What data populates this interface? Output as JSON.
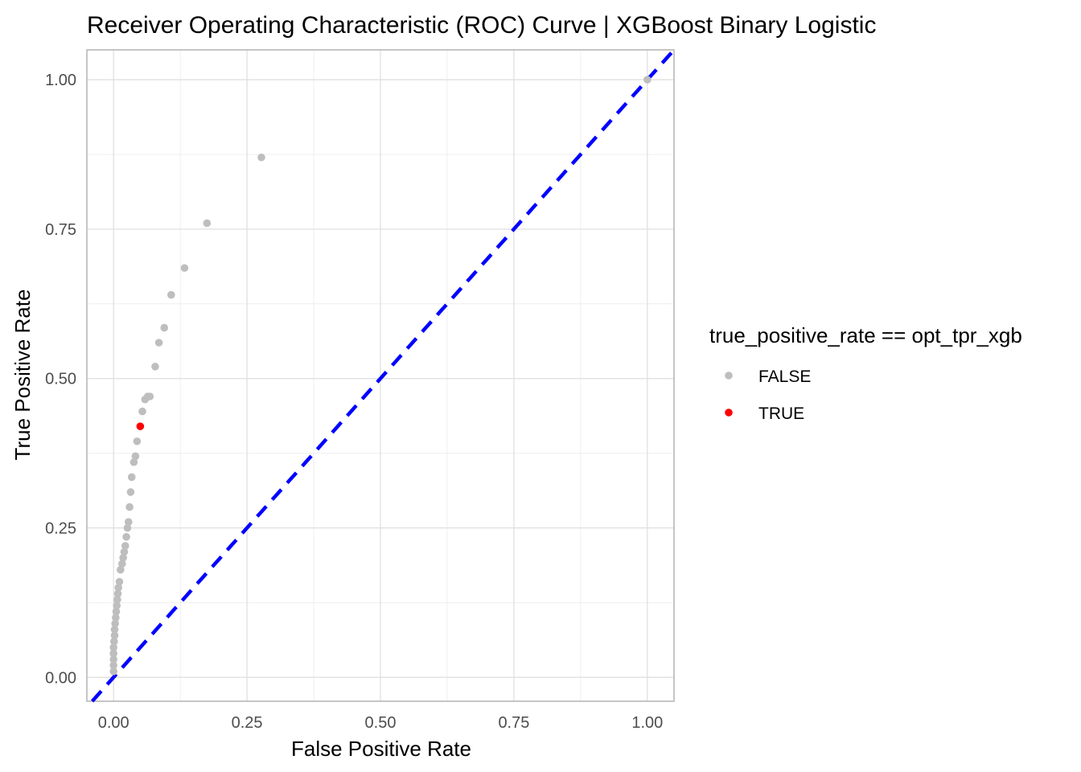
{
  "chart_data": {
    "type": "scatter",
    "title": "Receiver Operating Characteristic (ROC) Curve | XGBoost Binary Logistic",
    "xlabel": "False Positive Rate",
    "ylabel": "True Positive Rate",
    "xlim": [
      -0.05,
      1.05
    ],
    "ylim": [
      -0.04,
      1.05
    ],
    "x_ticks": [
      "0.00",
      "0.25",
      "0.50",
      "0.75",
      "1.00"
    ],
    "y_ticks": [
      "0.00",
      "0.25",
      "0.50",
      "0.75",
      "1.00"
    ],
    "grid": true,
    "legend": {
      "title": "true_positive_rate == opt_tpr_xgb",
      "position": "right",
      "entries": [
        {
          "label": "FALSE",
          "color": "#bebebe"
        },
        {
          "label": "TRUE",
          "color": "#ff0000"
        }
      ]
    },
    "reference_line": {
      "type": "dashed",
      "color": "#0000ff",
      "slope": 1,
      "intercept": 0
    },
    "series": [
      {
        "name": "FALSE",
        "color": "#bebebe",
        "points": [
          [
            0.0,
            0.01
          ],
          [
            0.0,
            0.02
          ],
          [
            0.0,
            0.03
          ],
          [
            0.0,
            0.04
          ],
          [
            0.0,
            0.05
          ],
          [
            0.001,
            0.06
          ],
          [
            0.002,
            0.07
          ],
          [
            0.002,
            0.08
          ],
          [
            0.003,
            0.09
          ],
          [
            0.004,
            0.1
          ],
          [
            0.005,
            0.11
          ],
          [
            0.006,
            0.12
          ],
          [
            0.007,
            0.13
          ],
          [
            0.008,
            0.14
          ],
          [
            0.009,
            0.15
          ],
          [
            0.011,
            0.16
          ],
          [
            0.013,
            0.18
          ],
          [
            0.016,
            0.19
          ],
          [
            0.018,
            0.2
          ],
          [
            0.02,
            0.21
          ],
          [
            0.022,
            0.22
          ],
          [
            0.024,
            0.235
          ],
          [
            0.026,
            0.25
          ],
          [
            0.028,
            0.26
          ],
          [
            0.03,
            0.285
          ],
          [
            0.032,
            0.31
          ],
          [
            0.034,
            0.335
          ],
          [
            0.038,
            0.36
          ],
          [
            0.041,
            0.37
          ],
          [
            0.044,
            0.395
          ],
          [
            0.054,
            0.445
          ],
          [
            0.059,
            0.465
          ],
          [
            0.064,
            0.47
          ],
          [
            0.068,
            0.47
          ],
          [
            0.078,
            0.52
          ],
          [
            0.085,
            0.56
          ],
          [
            0.095,
            0.585
          ],
          [
            0.108,
            0.64
          ],
          [
            0.133,
            0.685
          ],
          [
            0.175,
            0.76
          ],
          [
            0.277,
            0.87
          ],
          [
            1.0,
            1.0
          ]
        ]
      },
      {
        "name": "TRUE",
        "color": "#ff0000",
        "points": [
          [
            0.05,
            0.42
          ]
        ]
      }
    ]
  }
}
